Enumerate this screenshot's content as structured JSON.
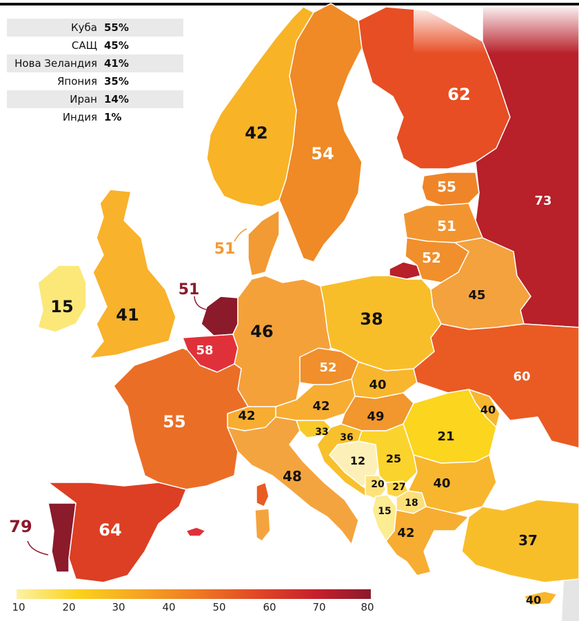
{
  "colors": {
    "bar_gradient": [
      "#fcf2a6",
      "#fbd21c",
      "#f6a623",
      "#ef7d22",
      "#e24a25",
      "#c8202c",
      "#8b1a2b"
    ],
    "land_grey": "#e5e5e5",
    "sea": "#ffffff",
    "accent_label": "#8b1a2b"
  },
  "legend_table": [
    {
      "country": "Куба",
      "value": "55%"
    },
    {
      "country": "САЩ",
      "value": "45%"
    },
    {
      "country": "Нова Зеландия",
      "value": "41%"
    },
    {
      "country": "Япония",
      "value": "35%"
    },
    {
      "country": "Иран",
      "value": "14%"
    },
    {
      "country": "Индия",
      "value": "1%"
    }
  ],
  "colorbar": {
    "min": 10,
    "max": 80,
    "ticks": [
      "10",
      "20",
      "30",
      "40",
      "50",
      "60",
      "70",
      "80"
    ]
  },
  "regions": [
    {
      "id": "norway",
      "value": "42",
      "color": "#f8b327"
    },
    {
      "id": "sweden",
      "value": "54",
      "color": "#ef8a26"
    },
    {
      "id": "finland",
      "value": "62",
      "color": "#e74e24"
    },
    {
      "id": "russia",
      "value": "73",
      "color": "#b8202a"
    },
    {
      "id": "estonia",
      "value": "55",
      "color": "#ef8528"
    },
    {
      "id": "latvia",
      "value": "51",
      "color": "#f29530"
    },
    {
      "id": "lithuania",
      "value": "52",
      "color": "#f08f2c"
    },
    {
      "id": "belarus",
      "value": "45",
      "color": "#f4a23e"
    },
    {
      "id": "ireland",
      "value": "15",
      "color": "#fbe879"
    },
    {
      "id": "uk",
      "value": "41",
      "color": "#f8b22b"
    },
    {
      "id": "denmark",
      "value": "51",
      "color": "#f29a34"
    },
    {
      "id": "netherlands",
      "value": "51",
      "color": "#8b1a2b"
    },
    {
      "id": "belgium",
      "value": "58",
      "color": "#e0313a"
    },
    {
      "id": "germany",
      "value": "46",
      "color": "#f4a13a"
    },
    {
      "id": "poland",
      "value": "38",
      "color": "#f8be2a"
    },
    {
      "id": "czechia",
      "value": "52",
      "color": "#f08f2c"
    },
    {
      "id": "slovakia",
      "value": "40",
      "color": "#f8b62e"
    },
    {
      "id": "austria",
      "value": "42",
      "color": "#f7ad32"
    },
    {
      "id": "hungary",
      "value": "49",
      "color": "#f2962e"
    },
    {
      "id": "switzerland",
      "value": "42",
      "color": "#f7ad32"
    },
    {
      "id": "ukraine",
      "value": "60",
      "color": "#e95b23"
    },
    {
      "id": "moldova",
      "value": "40",
      "color": "#f8b62e"
    },
    {
      "id": "romania",
      "value": "21",
      "color": "#fbd51e"
    },
    {
      "id": "france",
      "value": "55",
      "color": "#eb6e27"
    },
    {
      "id": "spain",
      "value": "64",
      "color": "#dc3f24"
    },
    {
      "id": "portugal",
      "value": "79",
      "color": "#8b1a2b"
    },
    {
      "id": "italy",
      "value": "48",
      "color": "#f4a43e"
    },
    {
      "id": "slovenia",
      "value": "33",
      "color": "#f9c92a"
    },
    {
      "id": "croatia",
      "value": "36",
      "color": "#f8c02c"
    },
    {
      "id": "bosnia",
      "value": "12",
      "color": "#fcf0b8"
    },
    {
      "id": "serbia",
      "value": "25",
      "color": "#fbd32d"
    },
    {
      "id": "montenegro",
      "value": "20",
      "color": "#fde27c"
    },
    {
      "id": "kosovo",
      "value": "27",
      "color": "#fbd64a"
    },
    {
      "id": "albania",
      "value": "15",
      "color": "#fcec92"
    },
    {
      "id": "north_macedonia",
      "value": "18",
      "color": "#fde07a"
    },
    {
      "id": "bulgaria",
      "value": "40",
      "color": "#f8b62e"
    },
    {
      "id": "greece",
      "value": "42",
      "color": "#f7ad32"
    },
    {
      "id": "turkey",
      "value": "37",
      "color": "#f8be2a"
    },
    {
      "id": "cyprus",
      "value": "40",
      "color": "#f8b62e"
    },
    {
      "id": "kaliningrad",
      "value": "",
      "color": "#b8202a"
    },
    {
      "id": "sardinia",
      "value": "",
      "color": "#e95b23"
    },
    {
      "id": "sicily",
      "value": "",
      "color": "#f4a43e"
    },
    {
      "id": "balearics",
      "value": "",
      "color": "#e0313a"
    }
  ]
}
